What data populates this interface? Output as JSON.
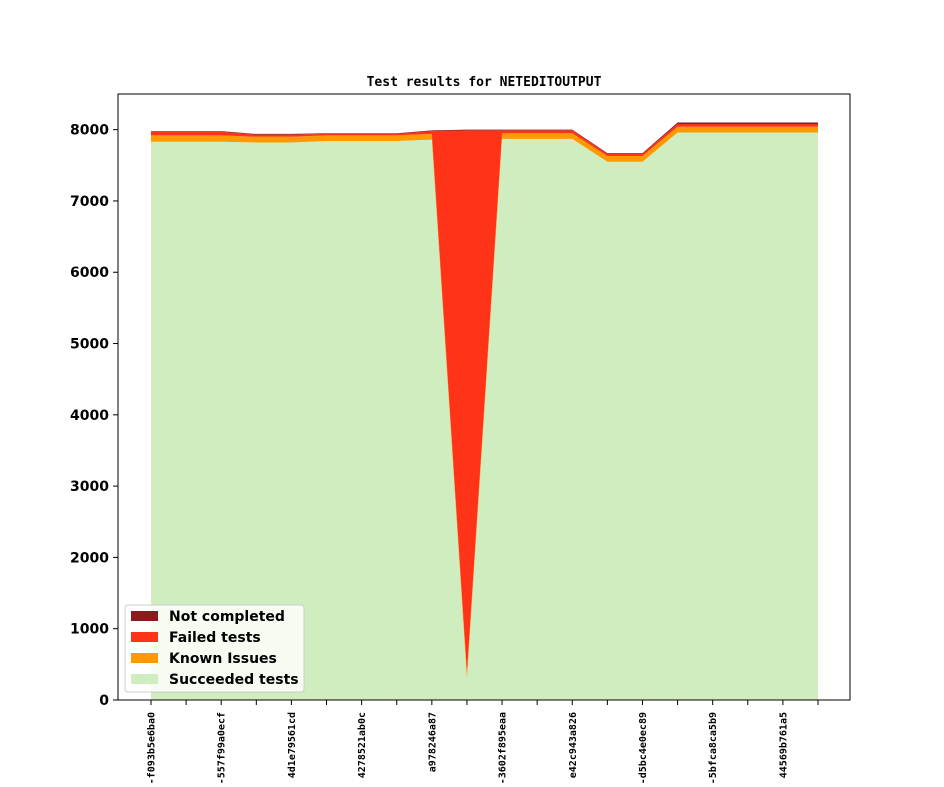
{
  "chart_data": {
    "type": "area",
    "stacked": true,
    "title": "Test results for NETEDITOUTPUT",
    "xlabel": "",
    "ylabel": "",
    "ylim": [
      0,
      8500
    ],
    "yticks": [
      0,
      1000,
      2000,
      3000,
      4000,
      5000,
      6000,
      7000,
      8000
    ],
    "grid": false,
    "legend_position": "lower-left",
    "x": [
      "-f093b5e6ba0",
      "",
      "-557f99a0ecf",
      "",
      "4d1e79561cd",
      "",
      "4278521ab0c",
      "",
      "a978246a87",
      "",
      "-3602f895eaa",
      "",
      "e42c943a826",
      "",
      "-d5bc4e0ec89",
      "",
      "-5bfca8ca5b9",
      "",
      "44569b761a5",
      ""
    ],
    "xtick_labels": [
      "-f093b5e6ba0",
      "-557f99a0ecf",
      "4d1e79561cd",
      "4278521ab0c",
      "a978246a87",
      "-3602f895eaa",
      "e42c943a826",
      "-d5bc4e0ec89",
      "-5bfca8ca5b9",
      "44569b761a5"
    ],
    "series": [
      {
        "name": "Succeeded tests",
        "color": "#cfedbf",
        "values": [
          7830,
          7830,
          7830,
          7820,
          7820,
          7840,
          7840,
          7840,
          7860,
          300,
          7870,
          7870,
          7870,
          7550,
          7550,
          7960,
          7960,
          7960,
          7960,
          7960
        ]
      },
      {
        "name": "Known Issues",
        "color": "#ff9900",
        "values": [
          90,
          90,
          90,
          80,
          80,
          80,
          80,
          80,
          80,
          80,
          80,
          80,
          80,
          80,
          80,
          80,
          80,
          80,
          80,
          80
        ]
      },
      {
        "name": "Failed tests",
        "color": "#ff3318",
        "values": [
          50,
          50,
          50,
          30,
          30,
          20,
          20,
          20,
          40,
          7610,
          40,
          40,
          40,
          30,
          30,
          40,
          40,
          40,
          40,
          40
        ]
      },
      {
        "name": "Not completed",
        "color": "#8b1a1a",
        "values": [
          10,
          10,
          10,
          10,
          10,
          10,
          10,
          10,
          10,
          10,
          10,
          10,
          10,
          10,
          10,
          20,
          20,
          20,
          20,
          20
        ]
      }
    ],
    "legend_order": [
      "Not completed",
      "Failed tests",
      "Known Issues",
      "Succeeded tests"
    ]
  }
}
